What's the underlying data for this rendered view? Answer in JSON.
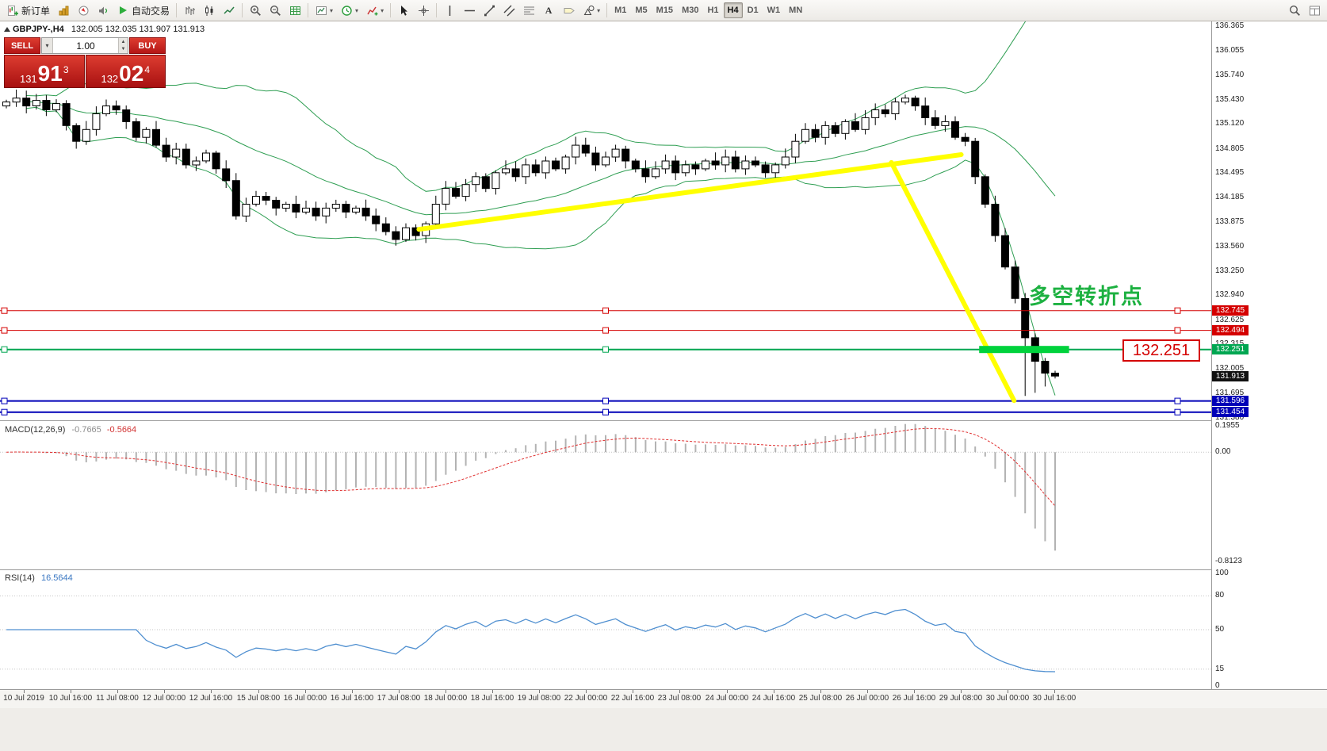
{
  "toolbar": {
    "left_items": [
      {
        "name": "new-order",
        "icon": "new-order",
        "label": "新订单"
      },
      {
        "name": "market-watch",
        "icon": "market-watch"
      },
      {
        "name": "navigator",
        "icon": "navigator"
      },
      {
        "name": "sound",
        "icon": "sound"
      },
      {
        "name": "auto-trading",
        "icon": "play",
        "label": "自动交易"
      },
      {
        "sep": true
      },
      {
        "name": "bar-chart",
        "icon": "bars"
      },
      {
        "name": "candlestick-chart",
        "icon": "candles"
      },
      {
        "name": "line-chart",
        "icon": "line"
      },
      {
        "sep": true
      },
      {
        "name": "zoom-in",
        "icon": "zoom-in"
      },
      {
        "name": "zoom-out",
        "icon": "zoom-out"
      },
      {
        "name": "grid",
        "icon": "grid"
      },
      {
        "sep": true
      },
      {
        "name": "templates",
        "icon": "template",
        "dropdown": true
      },
      {
        "name": "periods",
        "icon": "clock",
        "dropdown": true
      },
      {
        "name": "indicators",
        "icon": "indicator",
        "dropdown": true
      },
      {
        "sep": true
      },
      {
        "name": "cursor",
        "icon": "cursor"
      },
      {
        "name": "crosshair",
        "icon": "crosshair"
      },
      {
        "sep": true
      },
      {
        "name": "vertical-line",
        "icon": "vline"
      },
      {
        "name": "horizontal-line",
        "icon": "hline"
      },
      {
        "name": "trendline",
        "icon": "trend"
      },
      {
        "name": "equidistant-channel",
        "icon": "channel"
      },
      {
        "name": "fibonacci",
        "icon": "fibo"
      },
      {
        "name": "text",
        "icon": "text"
      },
      {
        "name": "text-label",
        "icon": "label"
      },
      {
        "name": "shapes",
        "icon": "shapes",
        "dropdown": true
      },
      {
        "sep": true
      }
    ],
    "timeframes": [
      "M1",
      "M5",
      "M15",
      "M30",
      "H1",
      "H4",
      "D1",
      "W1",
      "MN"
    ],
    "active_timeframe": "H4",
    "right_items": [
      {
        "name": "search",
        "icon": "search"
      },
      {
        "name": "chart-windows",
        "icon": "win"
      }
    ]
  },
  "chart_header": {
    "symbol": "GBPJPY-,H4",
    "ohlc": "132.005 132.035 131.907 131.913"
  },
  "trade_panel": {
    "sell_label": "SELL",
    "buy_label": "BUY",
    "volume": "1.00",
    "sell_price": {
      "head": "131",
      "big": "91",
      "sup": "3"
    },
    "buy_price": {
      "head": "132",
      "big": "02",
      "sup": "4"
    }
  },
  "annotations": {
    "turning_point_text": "多空转折点",
    "turning_point_color": "#1db141",
    "price_label": "132.251",
    "price_label_color": "#d40000"
  },
  "price_scale": {
    "ticks": [
      "136.365",
      "136.055",
      "135.740",
      "135.430",
      "135.120",
      "134.805",
      "134.495",
      "134.185",
      "133.875",
      "133.560",
      "133.250",
      "132.940",
      "132.625",
      "132.315",
      "132.005",
      "131.695",
      "131.380"
    ],
    "marked": [
      {
        "value": 132.745,
        "label": "132.745",
        "color": "#d40000"
      },
      {
        "value": 132.494,
        "label": "132.494",
        "color": "#d40000"
      },
      {
        "value": 132.251,
        "label": "132.251",
        "color": "#00a651"
      },
      {
        "value": 131.913,
        "label": "131.913",
        "color": "#111111",
        "current": true
      },
      {
        "value": 131.596,
        "label": "131.596",
        "color": "#0000b8"
      },
      {
        "value": 131.454,
        "label": "131.454",
        "color": "#0000b8"
      }
    ]
  },
  "indicators": {
    "macd": {
      "label": "MACD(12,26,9)",
      "value_main": "-0.7665",
      "value_signal": "-0.5664",
      "scale": [
        "0.1955",
        "0.00",
        "-0.8123"
      ],
      "fast": 12,
      "slow": 26,
      "signal": 9
    },
    "rsi": {
      "label": "RSI(14)",
      "value": "16.5644",
      "scale": [
        "100",
        "80",
        "50",
        "15",
        "0"
      ],
      "period": 14,
      "levels": [
        80,
        50,
        15
      ]
    }
  },
  "time_axis": {
    "labels": [
      "10 Jul 2019",
      "10 Jul 16:00",
      "11 Jul 08:00",
      "12 Jul 00:00",
      "12 Jul 16:00",
      "15 Jul 08:00",
      "16 Jul 00:00",
      "16 Jul 16:00",
      "17 Jul 08:00",
      "18 Jul 00:00",
      "18 Jul 16:00",
      "19 Jul 08:00",
      "22 Jul 00:00",
      "22 Jul 16:00",
      "23 Jul 08:00",
      "24 Jul 00:00",
      "24 Jul 16:00",
      "25 Jul 08:00",
      "26 Jul 00:00",
      "26 Jul 16:00",
      "29 Jul 08:00",
      "30 Jul 00:00",
      "30 Jul 16:00"
    ]
  },
  "chart_data": {
    "type": "candlestick",
    "symbol": "GBPJPY",
    "timeframe": "H4",
    "ylim": [
      131.38,
      136.365
    ],
    "first_open": 135.35,
    "closes": [
      135.4,
      135.45,
      135.35,
      135.42,
      135.3,
      135.38,
      135.1,
      134.9,
      135.05,
      135.25,
      135.35,
      135.3,
      135.15,
      134.95,
      135.05,
      134.85,
      134.7,
      134.8,
      134.6,
      134.65,
      134.75,
      134.55,
      134.4,
      133.95,
      134.1,
      134.2,
      134.15,
      134.05,
      134.1,
      134.0,
      134.05,
      133.95,
      134.05,
      134.1,
      134.0,
      134.05,
      133.95,
      133.85,
      133.75,
      133.65,
      133.8,
      133.7,
      133.85,
      134.1,
      134.3,
      134.2,
      134.35,
      134.45,
      134.3,
      134.5,
      134.55,
      134.45,
      134.6,
      134.5,
      134.65,
      134.55,
      134.7,
      134.85,
      134.75,
      134.6,
      134.7,
      134.8,
      134.65,
      134.55,
      134.45,
      134.55,
      134.65,
      134.5,
      134.6,
      134.55,
      134.65,
      134.6,
      134.7,
      134.55,
      134.65,
      134.6,
      134.5,
      134.6,
      134.7,
      134.9,
      135.05,
      134.95,
      135.1,
      135.0,
      135.15,
      135.05,
      135.2,
      135.3,
      135.25,
      135.4,
      135.45,
      135.35,
      135.2,
      135.1,
      135.15,
      134.95,
      134.9,
      134.45,
      134.1,
      133.7,
      133.3,
      132.9,
      132.4,
      132.1,
      131.95,
      131.913
    ],
    "low_overrides": {
      "102": 131.66,
      "103": 131.7,
      "104": 131.78
    },
    "bollinger_period": 20,
    "bollinger_dev": 2,
    "hlines": [
      {
        "price": 132.745,
        "color": "#d40000",
        "width": 1
      },
      {
        "price": 132.494,
        "color": "#d40000",
        "width": 1
      },
      {
        "price": 132.251,
        "color": "#00a651",
        "width": 2
      },
      {
        "price": 131.596,
        "color": "#0000b8",
        "width": 2
      },
      {
        "price": 131.454,
        "color": "#0000b8",
        "width": 2
      }
    ],
    "trendlines": [
      {
        "from_bar": 41.3,
        "from_price": 133.78,
        "to_bar": 95.6,
        "to_price": 134.73,
        "color": "#ffff00",
        "width": 6
      },
      {
        "from_bar": 88.6,
        "from_price": 134.63,
        "to_bar": 100.9,
        "to_price": 131.6,
        "color": "#ffff00",
        "width": 6
      }
    ],
    "highlight": {
      "from_bar": 97.4,
      "to_bar": 106.4,
      "price": 132.251,
      "color": "#00d23c",
      "height": 9
    },
    "colors": {
      "bands": "#2e9e52",
      "bull": "#ffffff",
      "bear": "#000000",
      "wick": "#000000",
      "macd_hist": "#b3b3b3",
      "macd_signal": "#e03131",
      "rsi_line": "#4f8fd0",
      "level_dots": "#c6c6c6"
    }
  }
}
